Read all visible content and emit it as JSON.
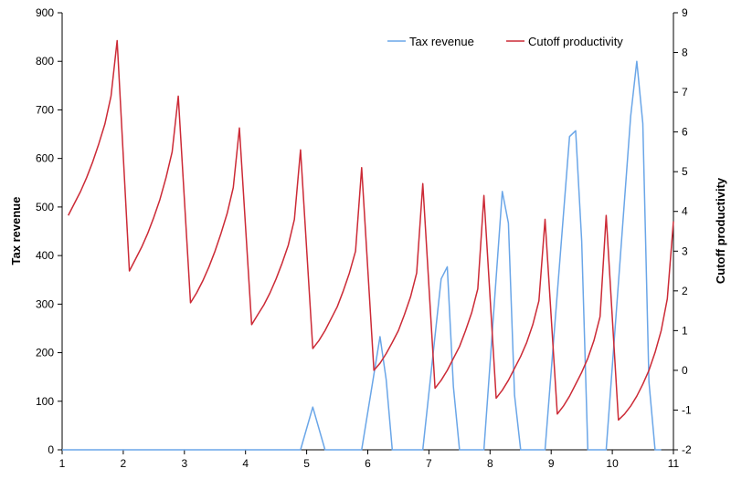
{
  "chart_data": {
    "type": "line",
    "xlim": [
      1,
      11
    ],
    "x_ticks": [
      1,
      2,
      3,
      4,
      5,
      6,
      7,
      8,
      9,
      10,
      11
    ],
    "ylabel_left": "Tax revenue",
    "ylim_left": [
      0,
      900
    ],
    "y_ticks_left": [
      0,
      100,
      200,
      300,
      400,
      500,
      600,
      700,
      800,
      900
    ],
    "ylabel_right": "Cutoff productivity",
    "ylim_right": [
      -2,
      9
    ],
    "y_ticks_right": [
      -2,
      -1,
      0,
      1,
      2,
      3,
      4,
      5,
      6,
      7,
      8,
      9
    ],
    "grid": false,
    "legend_position": "top-right",
    "colors": {
      "tax": "#6AA6E8",
      "cutoff": "#CC2A36"
    },
    "series": [
      {
        "name": "Tax revenue",
        "axis": "left",
        "color": "#6AA6E8",
        "x": [
          1.0,
          4.9,
          5.1,
          5.3,
          5.9,
          6.2,
          6.3,
          6.4,
          6.9,
          7.2,
          7.3,
          7.4,
          7.5,
          7.9,
          8.2,
          8.3,
          8.4,
          8.5,
          8.6,
          8.9,
          9.3,
          9.4,
          9.5,
          9.6,
          9.9,
          10.3,
          10.4,
          10.5,
          10.6,
          10.7,
          10.8
        ],
        "y": [
          0,
          0,
          88,
          0,
          0,
          233,
          145,
          0,
          0,
          352,
          377,
          130,
          0,
          0,
          532,
          467,
          113,
          0,
          0,
          0,
          645,
          657,
          430,
          0,
          0,
          687,
          800,
          672,
          140,
          0,
          0
        ]
      },
      {
        "name": "Cutoff productivity",
        "axis": "right",
        "color": "#CC2A36",
        "x": [
          1.1,
          1.2,
          1.3,
          1.4,
          1.5,
          1.6,
          1.7,
          1.8,
          1.9,
          2.1,
          2.2,
          2.3,
          2.4,
          2.5,
          2.6,
          2.7,
          2.8,
          2.9,
          3.1,
          3.2,
          3.3,
          3.4,
          3.5,
          3.6,
          3.7,
          3.8,
          3.9,
          4.1,
          4.2,
          4.3,
          4.4,
          4.5,
          4.6,
          4.7,
          4.8,
          4.9,
          5.1,
          5.2,
          5.3,
          5.4,
          5.5,
          5.6,
          5.7,
          5.8,
          5.9,
          6.1,
          6.2,
          6.3,
          6.4,
          6.5,
          6.6,
          6.7,
          6.8,
          6.9,
          7.1,
          7.2,
          7.3,
          7.4,
          7.5,
          7.6,
          7.7,
          7.8,
          7.9,
          8.1,
          8.2,
          8.3,
          8.4,
          8.5,
          8.6,
          8.7,
          8.8,
          8.9,
          9.1,
          9.2,
          9.3,
          9.4,
          9.5,
          9.6,
          9.7,
          9.8,
          9.9,
          10.1,
          10.2,
          10.3,
          10.4,
          10.5,
          10.6,
          10.7,
          10.8,
          10.9,
          11.0
        ],
        "y": [
          3.9,
          4.2,
          4.5,
          4.85,
          5.25,
          5.7,
          6.2,
          6.9,
          8.3,
          2.5,
          2.8,
          3.1,
          3.45,
          3.85,
          4.3,
          4.85,
          5.5,
          6.9,
          1.7,
          1.95,
          2.25,
          2.6,
          3.0,
          3.45,
          3.95,
          4.6,
          6.1,
          1.15,
          1.4,
          1.65,
          1.95,
          2.3,
          2.7,
          3.15,
          3.8,
          5.55,
          0.55,
          0.75,
          1.0,
          1.3,
          1.6,
          2.0,
          2.45,
          3.0,
          5.1,
          0.0,
          0.18,
          0.42,
          0.7,
          1.0,
          1.4,
          1.85,
          2.45,
          4.7,
          -0.45,
          -0.25,
          0.0,
          0.3,
          0.6,
          1.0,
          1.45,
          2.05,
          4.4,
          -0.7,
          -0.5,
          -0.25,
          0.05,
          0.35,
          0.7,
          1.15,
          1.75,
          3.8,
          -1.1,
          -0.9,
          -0.65,
          -0.35,
          -0.05,
          0.3,
          0.75,
          1.35,
          3.9,
          -1.25,
          -1.1,
          -0.9,
          -0.65,
          -0.35,
          0.0,
          0.45,
          1.0,
          1.8,
          3.75
        ]
      }
    ]
  }
}
